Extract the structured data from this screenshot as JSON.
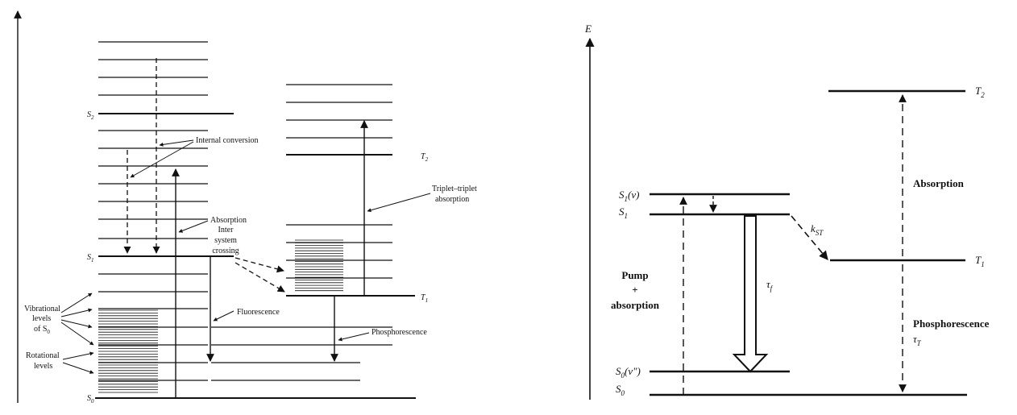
{
  "left": {
    "s2": "S",
    "s2_sub": "2",
    "s1": "S",
    "s1_sub": "1",
    "s0": "S",
    "s0_sub": "0",
    "t2": "T",
    "t2_sub": "2",
    "t1": "T",
    "t1_sub": "1",
    "internal_conversion": "Internal conversion",
    "absorption": "Absorption",
    "isc_line1": "Inter",
    "isc_line2": "system",
    "isc_line3": "crossing",
    "fluorescence": "Fluorescence",
    "phosphorescence": "Phosphorescence",
    "tt_line1": "Triplet–triplet",
    "tt_line2": "absorption",
    "vib_line1": "Vibrational",
    "vib_line2": "levels",
    "vib_line3": "of S",
    "vib_line3_sub": "0",
    "rot_line1": "Rotational",
    "rot_line2": "levels"
  },
  "right": {
    "e_axis": "E",
    "t2": "T",
    "t2_sub": "2",
    "s1v": "S",
    "s1v_sub": "1",
    "s1v_suffix": "(v)",
    "s1": "S",
    "s1_sub": "1",
    "t1": "T",
    "t1_sub": "1",
    "kst": "k",
    "kst_sub": "ST",
    "tau_f": "τ",
    "tau_f_sub": "f",
    "pump_line1": "Pump",
    "pump_line2": "+",
    "pump_line3": "absorption",
    "absorption": "Absorption",
    "phosphorescence": "Phosphorescence",
    "tau_t": "τ",
    "tau_t_sub": "T",
    "s0v": "S",
    "s0v_sub": "0",
    "s0v_suffix": "(v\")",
    "s0": "S",
    "s0_sub": "0"
  }
}
